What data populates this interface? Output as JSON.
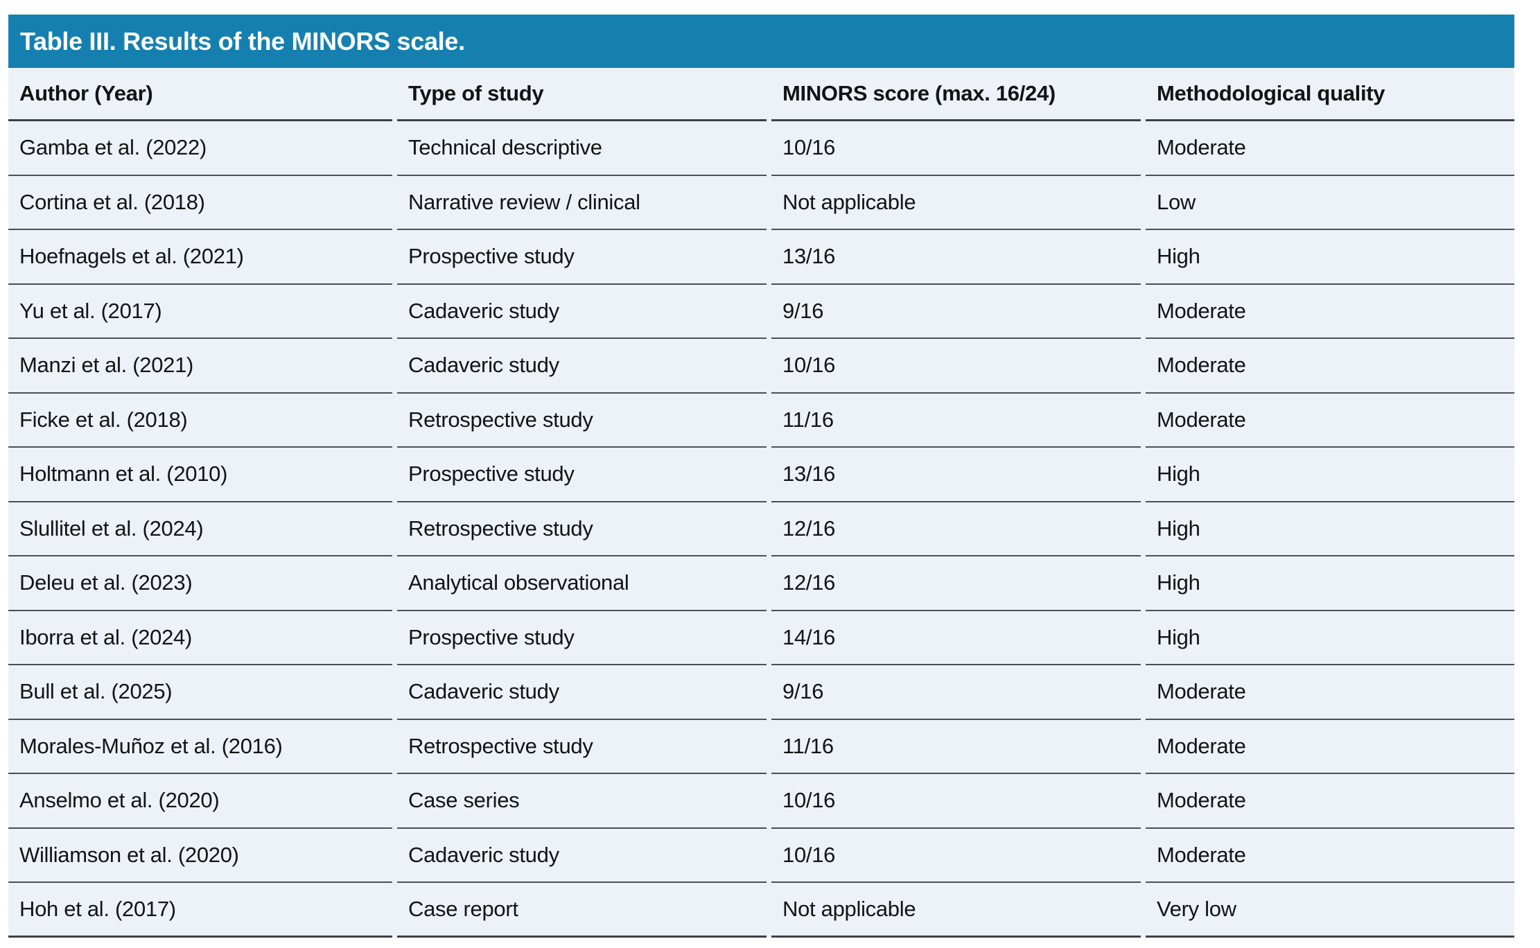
{
  "table": {
    "title": "Table III. Results of the MINORS scale.",
    "columns": [
      "Author (Year)",
      "Type of study",
      "MINORS score (max. 16/24)",
      "Methodological quality"
    ],
    "rows": [
      {
        "author": "Gamba et al. (2022)",
        "type": "Technical descriptive",
        "score": "10/16",
        "quality": "Moderate"
      },
      {
        "author": "Cortina et al. (2018)",
        "type": "Narrative review / clinical",
        "score": "Not applicable",
        "quality": "Low"
      },
      {
        "author": "Hoefnagels et al. (2021)",
        "type": "Prospective study",
        "score": "13/16",
        "quality": "High"
      },
      {
        "author": "Yu et al. (2017)",
        "type": "Cadaveric study",
        "score": "9/16",
        "quality": "Moderate"
      },
      {
        "author": "Manzi et al. (2021)",
        "type": "Cadaveric study",
        "score": "10/16",
        "quality": "Moderate"
      },
      {
        "author": "Ficke et al. (2018)",
        "type": "Retrospective study",
        "score": "11/16",
        "quality": "Moderate"
      },
      {
        "author": "Holtmann et al. (2010)",
        "type": "Prospective study",
        "score": "13/16",
        "quality": "High"
      },
      {
        "author": "Slullitel et al. (2024)",
        "type": "Retrospective study",
        "score": "12/16",
        "quality": "High"
      },
      {
        "author": "Deleu et al. (2023)",
        "type": "Analytical observational",
        "score": "12/16",
        "quality": "High"
      },
      {
        "author": "Iborra et al. (2024)",
        "type": "Prospective study",
        "score": "14/16",
        "quality": "High"
      },
      {
        "author": "Bull et al. (2025)",
        "type": "Cadaveric study",
        "score": "9/16",
        "quality": "Moderate"
      },
      {
        "author": "Morales-Muñoz et al. (2016)",
        "type": "Retrospective study",
        "score": "11/16",
        "quality": "Moderate"
      },
      {
        "author": "Anselmo et al. (2020)",
        "type": "Case series",
        "score": "10/16",
        "quality": "Moderate"
      },
      {
        "author": "Williamson et al. (2020)",
        "type": "Cadaveric study",
        "score": "10/16",
        "quality": "Moderate"
      },
      {
        "author": "Hoh et al. (2017)",
        "type": "Case report",
        "score": "Not applicable",
        "quality": "Very low"
      }
    ]
  },
  "colors": {
    "title_bar": "#1580af",
    "row_background": "#edf1f8",
    "rule": "#4b4f56",
    "strong_rule": "#3d4147",
    "title_text": "#ffffff",
    "body_text": "#131313"
  }
}
